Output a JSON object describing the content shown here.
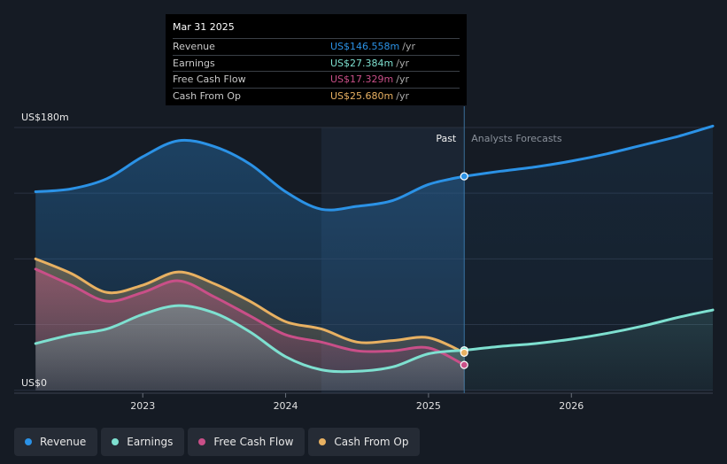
{
  "chart_data": {
    "type": "area",
    "title": "",
    "x_ticks": [
      {
        "year": 2023,
        "label": "2023"
      },
      {
        "year": 2024,
        "label": "2024"
      },
      {
        "year": 2025,
        "label": "2025"
      },
      {
        "year": 2026,
        "label": "2026"
      }
    ],
    "xlim": [
      2022.1,
      2026.99
    ],
    "ylim": [
      -2,
      180
    ],
    "y_ticks": [
      {
        "value": 180,
        "label": "US$180m"
      },
      {
        "value": 0,
        "label": "US$0"
      }
    ],
    "past_label": "Past",
    "forecast_label": "Analysts Forecasts",
    "highlight_start": 2024.25,
    "divider_x": 2025.25,
    "series": [
      {
        "name": "Revenue",
        "color": "#2b92e6",
        "points": [
          [
            2022.25,
            136
          ],
          [
            2022.5,
            138
          ],
          [
            2022.75,
            145
          ],
          [
            2023.0,
            160
          ],
          [
            2023.25,
            171
          ],
          [
            2023.5,
            167
          ],
          [
            2023.75,
            155
          ],
          [
            2024.0,
            136
          ],
          [
            2024.25,
            124
          ],
          [
            2024.5,
            126
          ],
          [
            2024.75,
            130
          ],
          [
            2025.0,
            141
          ],
          [
            2025.25,
            146.558
          ]
        ],
        "forecast": [
          [
            2025.25,
            146.558
          ],
          [
            2025.5,
            150
          ],
          [
            2025.75,
            153
          ],
          [
            2026.0,
            157
          ],
          [
            2026.25,
            162
          ],
          [
            2026.5,
            168
          ],
          [
            2026.75,
            174
          ],
          [
            2026.99,
            181
          ]
        ]
      },
      {
        "name": "Earnings",
        "color": "#7ee0d0",
        "points": [
          [
            2022.25,
            32
          ],
          [
            2022.5,
            38
          ],
          [
            2022.75,
            42
          ],
          [
            2023.0,
            52
          ],
          [
            2023.25,
            58
          ],
          [
            2023.5,
            53
          ],
          [
            2023.75,
            40
          ],
          [
            2024.0,
            23
          ],
          [
            2024.25,
            14
          ],
          [
            2024.5,
            13
          ],
          [
            2024.75,
            16
          ],
          [
            2025.0,
            25
          ],
          [
            2025.25,
            27.384
          ]
        ],
        "forecast": [
          [
            2025.25,
            27.384
          ],
          [
            2025.5,
            30
          ],
          [
            2025.75,
            32
          ],
          [
            2026.0,
            35
          ],
          [
            2026.25,
            39
          ],
          [
            2026.5,
            44
          ],
          [
            2026.75,
            50
          ],
          [
            2026.99,
            55
          ]
        ]
      },
      {
        "name": "Free Cash Flow",
        "color": "#c94f88",
        "points": [
          [
            2022.25,
            83
          ],
          [
            2022.5,
            72
          ],
          [
            2022.75,
            61
          ],
          [
            2023.0,
            67
          ],
          [
            2023.25,
            75
          ],
          [
            2023.5,
            64
          ],
          [
            2023.75,
            51
          ],
          [
            2024.0,
            38
          ],
          [
            2024.25,
            33
          ],
          [
            2024.5,
            27
          ],
          [
            2024.75,
            27
          ],
          [
            2025.0,
            29
          ],
          [
            2025.25,
            17.329
          ]
        ],
        "forecast": []
      },
      {
        "name": "Cash From Op",
        "color": "#e8b162",
        "points": [
          [
            2022.25,
            90
          ],
          [
            2022.5,
            80
          ],
          [
            2022.75,
            67
          ],
          [
            2023.0,
            72
          ],
          [
            2023.25,
            81
          ],
          [
            2023.5,
            73
          ],
          [
            2023.75,
            61
          ],
          [
            2024.0,
            47
          ],
          [
            2024.25,
            42
          ],
          [
            2024.5,
            33
          ],
          [
            2024.75,
            34
          ],
          [
            2025.0,
            36
          ],
          [
            2025.25,
            25.68
          ]
        ],
        "forecast": []
      }
    ]
  },
  "tooltip": {
    "date": "Mar 31 2025",
    "unit": "/yr",
    "rows": [
      {
        "label": "Revenue",
        "value": "US$146.558m",
        "color": "#2b92e6"
      },
      {
        "label": "Earnings",
        "value": "US$27.384m",
        "color": "#7ee0d0"
      },
      {
        "label": "Free Cash Flow",
        "value": "US$17.329m",
        "color": "#c94f88"
      },
      {
        "label": "Cash From Op",
        "value": "US$25.680m",
        "color": "#e8b162"
      }
    ]
  },
  "legend": [
    {
      "label": "Revenue",
      "color": "#2b92e6"
    },
    {
      "label": "Earnings",
      "color": "#7ee0d0"
    },
    {
      "label": "Free Cash Flow",
      "color": "#c94f88"
    },
    {
      "label": "Cash From Op",
      "color": "#e8b162"
    }
  ]
}
